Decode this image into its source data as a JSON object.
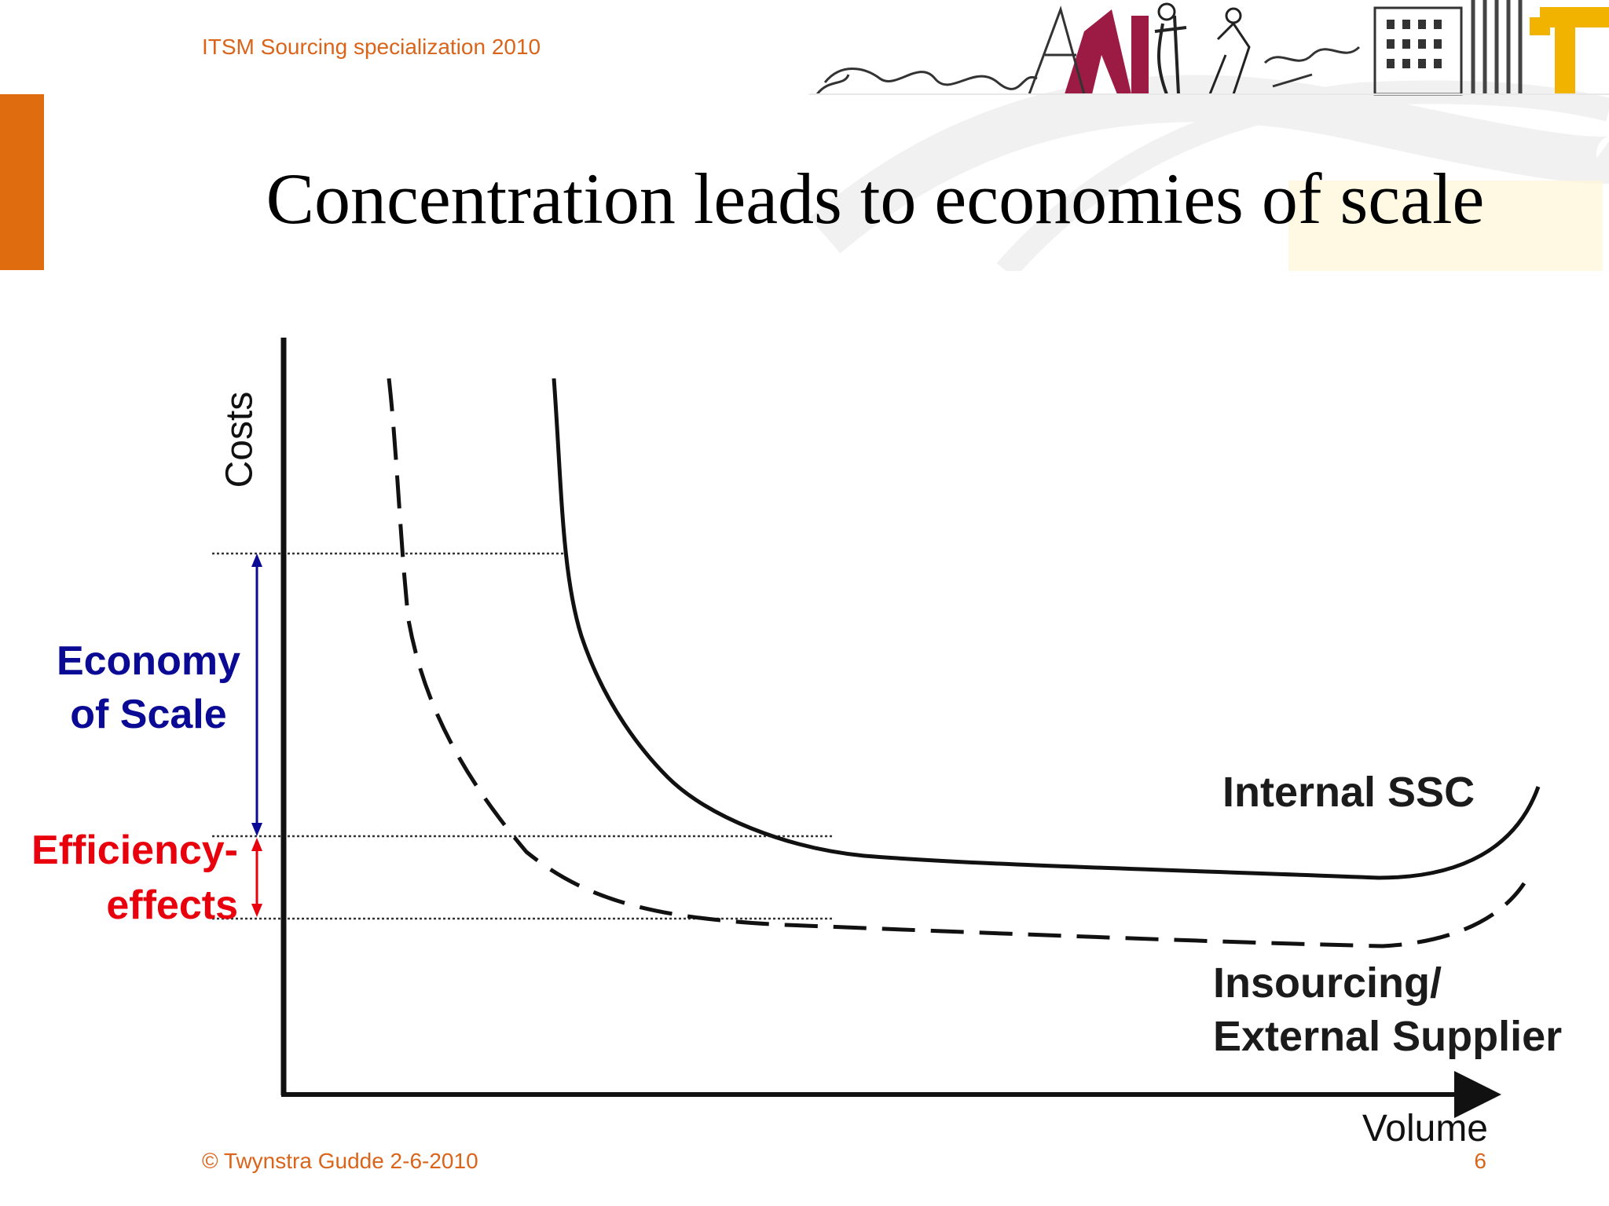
{
  "header": {
    "course_title": "ITSM Sourcing specialization 2010"
  },
  "slide": {
    "title": "Concentration leads to economies of scale"
  },
  "diagram": {
    "y_axis_label": "Costs",
    "x_axis_label": "Volume",
    "economy_of_scale": {
      "line1": "Economy",
      "line2": "of Scale",
      "color": "#0a0a94"
    },
    "efficiency_effects": {
      "line1": "Efficiency-",
      "line2": "effects",
      "color": "#e8000d"
    },
    "curve_internal": {
      "label": "Internal SSC",
      "style": "solid"
    },
    "curve_external": {
      "label_line1": "Insourcing/",
      "label_line2": "External Supplier",
      "style": "dashed"
    }
  },
  "footer": {
    "copyright": "© Twynstra Gudde  2-6-2010",
    "page_number": "6"
  },
  "colors": {
    "accent_orange": "#e06c10",
    "banner_maroon": "#9b1b45",
    "banner_gold": "#f2b200"
  }
}
